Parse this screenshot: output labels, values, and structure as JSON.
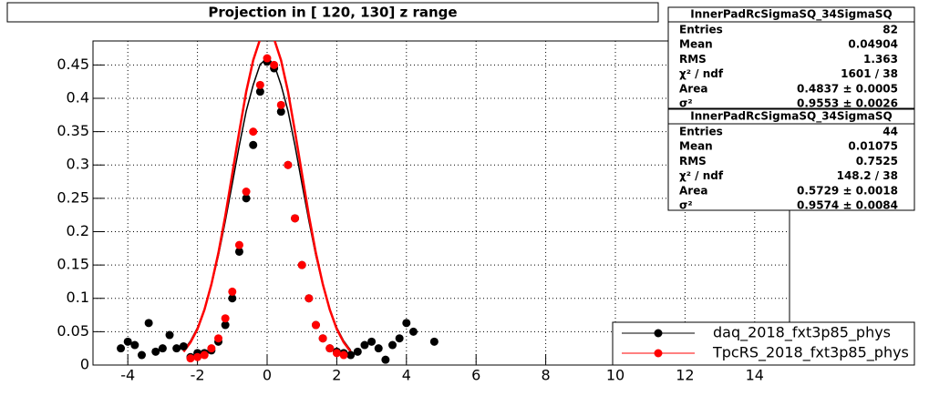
{
  "chart_data": {
    "type": "scatter",
    "title": "Projection in [ 120, 130] z range",
    "xlim": [
      -5,
      15
    ],
    "ylim": [
      0,
      0.486
    ],
    "xticks": [
      -4,
      -2,
      0,
      2,
      4,
      6,
      8,
      10,
      12,
      14
    ],
    "yticks": [
      0,
      0.05,
      0.1,
      0.15,
      0.2,
      0.25,
      0.3,
      0.35,
      0.4,
      0.45
    ],
    "grid": true,
    "legend_position": "bottom-right",
    "series": [
      {
        "name": "daq_2018_fxt3p85_phys",
        "color": "#000000",
        "x": [
          -4.2,
          -4.0,
          -3.8,
          -3.6,
          -3.4,
          -3.2,
          -3.0,
          -2.8,
          -2.6,
          -2.4,
          -2.2,
          -2.0,
          -1.8,
          -1.6,
          -1.4,
          -1.2,
          -1.0,
          -0.8,
          -0.6,
          -0.4,
          -0.2,
          0.0,
          0.2,
          0.4,
          0.6,
          0.8,
          1.0,
          1.2,
          1.4,
          1.6,
          1.8,
          2.0,
          2.2,
          2.4,
          2.6,
          2.8,
          3.0,
          3.2,
          3.4,
          3.6,
          3.8,
          4.0,
          4.2,
          4.8
        ],
        "values": [
          0.025,
          0.035,
          0.03,
          0.015,
          0.063,
          0.02,
          0.025,
          0.045,
          0.025,
          0.028,
          0.012,
          0.018,
          0.018,
          0.022,
          0.035,
          0.06,
          0.1,
          0.17,
          0.25,
          0.33,
          0.41,
          0.455,
          0.445,
          0.38,
          0.3,
          0.22,
          0.15,
          0.1,
          0.06,
          0.04,
          0.025,
          0.02,
          0.018,
          0.015,
          0.02,
          0.03,
          0.035,
          0.025,
          0.008,
          0.03,
          0.04,
          0.063,
          0.05,
          0.035
        ]
      },
      {
        "name": "TpcRS_2018_fxt3p85_phys",
        "color": "#ff0000",
        "x": [
          -2.2,
          -2.0,
          -1.8,
          -1.6,
          -1.4,
          -1.2,
          -1.0,
          -0.8,
          -0.6,
          -0.4,
          -0.2,
          0.0,
          0.2,
          0.4,
          0.6,
          0.8,
          1.0,
          1.2,
          1.4,
          1.6,
          1.8,
          2.0,
          2.2
        ],
        "values": [
          0.01,
          0.012,
          0.015,
          0.025,
          0.04,
          0.07,
          0.11,
          0.18,
          0.26,
          0.35,
          0.42,
          0.46,
          0.45,
          0.39,
          0.3,
          0.22,
          0.15,
          0.1,
          0.06,
          0.04,
          0.025,
          0.018,
          0.015
        ]
      }
    ],
    "fits": [
      {
        "color": "#000000",
        "x": [
          -2.4,
          -2.2,
          -2.0,
          -1.8,
          -1.6,
          -1.4,
          -1.2,
          -1.0,
          -0.8,
          -0.6,
          -0.4,
          -0.2,
          0.0,
          0.2,
          0.4,
          0.6,
          0.8,
          1.0,
          1.2,
          1.4,
          1.6,
          1.8,
          2.0,
          2.2,
          2.4
        ],
        "values": [
          0.022,
          0.036,
          0.056,
          0.083,
          0.12,
          0.164,
          0.216,
          0.272,
          0.329,
          0.381,
          0.42,
          0.451,
          0.46,
          0.451,
          0.42,
          0.381,
          0.329,
          0.272,
          0.216,
          0.164,
          0.12,
          0.083,
          0.056,
          0.036,
          0.022
        ]
      },
      {
        "color": "#ff0000",
        "x": [
          -2.4,
          -2.2,
          -2.0,
          -1.8,
          -1.6,
          -1.4,
          -1.2,
          -1.0,
          -0.8,
          -0.6,
          -0.4,
          -0.2,
          0.0,
          0.2,
          0.4,
          0.6,
          0.8,
          1.0,
          1.2,
          1.4,
          1.6,
          1.8,
          2.0,
          2.2,
          2.4
        ],
        "values": [
          0.02,
          0.034,
          0.054,
          0.083,
          0.121,
          0.168,
          0.224,
          0.287,
          0.35,
          0.41,
          0.457,
          0.489,
          0.5,
          0.489,
          0.457,
          0.41,
          0.35,
          0.287,
          0.224,
          0.168,
          0.121,
          0.083,
          0.054,
          0.034,
          0.02
        ]
      }
    ],
    "stats": [
      {
        "title": "InnerPadRcSigmaSQ_34SigmaSQ",
        "rows": [
          [
            "Entries",
            "82"
          ],
          [
            "Mean",
            "0.04904"
          ],
          [
            "RMS",
            "1.363"
          ],
          [
            "χ² / ndf",
            "1601 / 38"
          ],
          [
            "Area",
            "0.4837 ± 0.0005"
          ],
          [
            "σ²",
            "0.9553 ± 0.0026"
          ]
        ]
      },
      {
        "title": "InnerPadRcSigmaSQ_34SigmaSQ",
        "rows": [
          [
            "Entries",
            "44"
          ],
          [
            "Mean",
            "0.01075"
          ],
          [
            "RMS",
            "0.7525"
          ],
          [
            "χ² / ndf",
            "148.2 / 38"
          ],
          [
            "Area",
            "0.5729 ± 0.0018"
          ],
          [
            "σ²",
            "0.9574 ± 0.0084"
          ]
        ]
      }
    ]
  }
}
